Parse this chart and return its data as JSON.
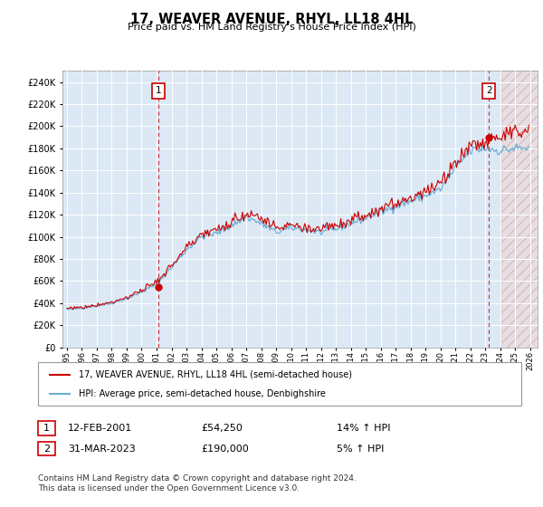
{
  "title": "17, WEAVER AVENUE, RHYL, LL18 4HL",
  "subtitle": "Price paid vs. HM Land Registry's House Price Index (HPI)",
  "ylim": [
    0,
    250000
  ],
  "xlim_start": 1995.0,
  "xlim_end": 2026.5,
  "plot_bg_color": "#dce9f5",
  "hpi_color": "#6baed6",
  "price_color": "#cc0000",
  "legend_label_red": "17, WEAVER AVENUE, RHYL, LL18 4HL (semi-detached house)",
  "legend_label_blue": "HPI: Average price, semi-detached house, Denbighshire",
  "annotation1_label": "1",
  "annotation1_date": "12-FEB-2001",
  "annotation1_price": "£54,250",
  "annotation1_hpi": "14% ↑ HPI",
  "annotation2_label": "2",
  "annotation2_date": "31-MAR-2023",
  "annotation2_price": "£190,000",
  "annotation2_hpi": "5% ↑ HPI",
  "footer": "Contains HM Land Registry data © Crown copyright and database right 2024.\nThis data is licensed under the Open Government Licence v3.0.",
  "marker1_year": 2001.12,
  "marker1_price": 54250,
  "marker2_year": 2023.25,
  "marker2_price": 190000,
  "hpi_anchors_years": [
    1995,
    1996,
    1997,
    1998,
    1999,
    2000,
    2001,
    2002,
    2003,
    2004,
    2005,
    2006,
    2007,
    2008,
    2009,
    2010,
    2011,
    2012,
    2013,
    2014,
    2015,
    2016,
    2017,
    2018,
    2019,
    2020,
    2021,
    2022,
    2023,
    2024,
    2025
  ],
  "hpi_anchors_vals": [
    34000,
    35500,
    37500,
    40000,
    44000,
    50000,
    57000,
    72000,
    88000,
    100000,
    103000,
    110000,
    118000,
    112000,
    104000,
    108000,
    106000,
    104000,
    107000,
    112000,
    117000,
    122000,
    128000,
    132000,
    137000,
    143000,
    162000,
    178000,
    180000,
    178000,
    180000
  ]
}
